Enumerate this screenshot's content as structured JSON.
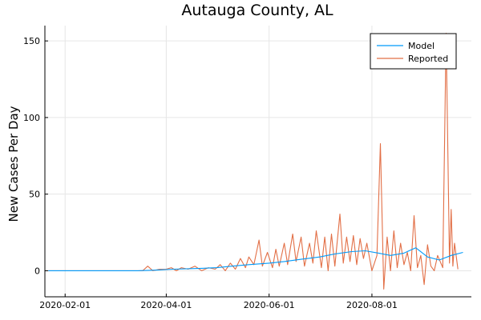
{
  "chart_data": {
    "type": "line",
    "title": "Autauga County, AL",
    "xlabel": "",
    "ylabel": "New Cases Per Day",
    "x_ticks": [
      "2020-02-01",
      "2020-04-01",
      "2020-06-01",
      "2020-08-01"
    ],
    "y_ticks": [
      0,
      50,
      100,
      150
    ],
    "xlim": [
      "2020-01-20",
      "2020-09-29"
    ],
    "ylim": [
      -17,
      160
    ],
    "grid": true,
    "legend_position": "top-right",
    "series": [
      {
        "name": "Model",
        "color": "#009AFA",
        "points": [
          [
            "2020-01-22",
            0
          ],
          [
            "2020-03-15",
            0
          ],
          [
            "2020-03-25",
            0.4
          ],
          [
            "2020-04-05",
            1
          ],
          [
            "2020-04-20",
            1.5
          ],
          [
            "2020-05-01",
            2
          ],
          [
            "2020-05-10",
            3
          ],
          [
            "2020-05-20",
            4
          ],
          [
            "2020-06-01",
            5
          ],
          [
            "2020-06-10",
            6
          ],
          [
            "2020-06-20",
            7.5
          ],
          [
            "2020-07-01",
            9
          ],
          [
            "2020-07-10",
            11
          ],
          [
            "2020-07-20",
            12.5
          ],
          [
            "2020-07-28",
            13
          ],
          [
            "2020-08-05",
            11.5
          ],
          [
            "2020-08-12",
            10
          ],
          [
            "2020-08-20",
            11.5
          ],
          [
            "2020-08-27",
            15
          ],
          [
            "2020-09-03",
            9
          ],
          [
            "2020-09-10",
            7
          ],
          [
            "2020-09-17",
            10
          ],
          [
            "2020-09-24",
            12
          ]
        ]
      },
      {
        "name": "Reported",
        "color": "#E26F46",
        "points": [
          [
            "2020-01-22",
            0
          ],
          [
            "2020-03-18",
            0
          ],
          [
            "2020-03-21",
            3
          ],
          [
            "2020-03-24",
            0
          ],
          [
            "2020-03-28",
            1
          ],
          [
            "2020-04-01",
            1
          ],
          [
            "2020-04-04",
            2
          ],
          [
            "2020-04-07",
            0
          ],
          [
            "2020-04-10",
            2
          ],
          [
            "2020-04-14",
            1
          ],
          [
            "2020-04-18",
            3
          ],
          [
            "2020-04-22",
            0
          ],
          [
            "2020-04-26",
            2
          ],
          [
            "2020-04-30",
            1
          ],
          [
            "2020-05-03",
            4
          ],
          [
            "2020-05-06",
            0
          ],
          [
            "2020-05-09",
            5
          ],
          [
            "2020-05-12",
            1
          ],
          [
            "2020-05-15",
            8
          ],
          [
            "2020-05-18",
            2
          ],
          [
            "2020-05-20",
            9
          ],
          [
            "2020-05-23",
            4
          ],
          [
            "2020-05-26",
            20
          ],
          [
            "2020-05-28",
            3
          ],
          [
            "2020-05-31",
            12
          ],
          [
            "2020-06-03",
            2
          ],
          [
            "2020-06-05",
            14
          ],
          [
            "2020-06-07",
            3
          ],
          [
            "2020-06-10",
            18
          ],
          [
            "2020-06-12",
            4
          ],
          [
            "2020-06-15",
            24
          ],
          [
            "2020-06-17",
            6
          ],
          [
            "2020-06-20",
            22
          ],
          [
            "2020-06-22",
            3
          ],
          [
            "2020-06-25",
            18
          ],
          [
            "2020-06-27",
            5
          ],
          [
            "2020-06-29",
            26
          ],
          [
            "2020-07-02",
            2
          ],
          [
            "2020-07-04",
            22
          ],
          [
            "2020-07-06",
            0
          ],
          [
            "2020-07-08",
            24
          ],
          [
            "2020-07-10",
            3
          ],
          [
            "2020-07-13",
            37
          ],
          [
            "2020-07-15",
            5
          ],
          [
            "2020-07-17",
            22
          ],
          [
            "2020-07-19",
            6
          ],
          [
            "2020-07-21",
            23
          ],
          [
            "2020-07-23",
            4
          ],
          [
            "2020-07-25",
            21
          ],
          [
            "2020-07-27",
            8
          ],
          [
            "2020-07-29",
            18
          ],
          [
            "2020-08-01",
            0
          ],
          [
            "2020-08-04",
            10
          ],
          [
            "2020-08-06",
            83
          ],
          [
            "2020-08-08",
            -12
          ],
          [
            "2020-08-10",
            22
          ],
          [
            "2020-08-12",
            0
          ],
          [
            "2020-08-14",
            26
          ],
          [
            "2020-08-16",
            2
          ],
          [
            "2020-08-18",
            18
          ],
          [
            "2020-08-20",
            4
          ],
          [
            "2020-08-22",
            12
          ],
          [
            "2020-08-24",
            0
          ],
          [
            "2020-08-26",
            36
          ],
          [
            "2020-08-28",
            2
          ],
          [
            "2020-08-30",
            10
          ],
          [
            "2020-09-01",
            -9
          ],
          [
            "2020-09-03",
            17
          ],
          [
            "2020-09-05",
            3
          ],
          [
            "2020-09-07",
            0
          ],
          [
            "2020-09-09",
            10
          ],
          [
            "2020-09-12",
            2
          ],
          [
            "2020-09-14",
            155
          ],
          [
            "2020-09-16",
            5
          ],
          [
            "2020-09-17",
            40
          ],
          [
            "2020-09-18",
            3
          ],
          [
            "2020-09-19",
            18
          ],
          [
            "2020-09-21",
            1
          ]
        ]
      }
    ]
  }
}
